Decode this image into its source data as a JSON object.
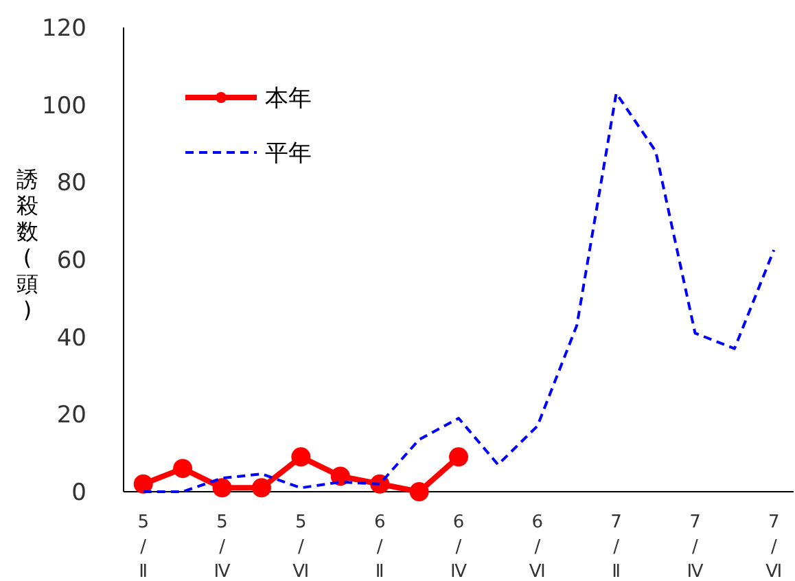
{
  "chart_data": {
    "type": "line",
    "ylabel": "誘殺数(頭)",
    "categories": [
      "5/Ⅱ",
      null,
      "5/Ⅳ",
      null,
      "5/Ⅵ",
      null,
      "6/Ⅱ",
      null,
      "6/Ⅳ",
      null,
      "6/Ⅵ",
      null,
      "7/Ⅱ",
      null,
      "7/Ⅳ",
      null,
      "7/Ⅵ"
    ],
    "series": [
      {
        "name": "本年",
        "color": "#ff0000",
        "marker": "circle",
        "line_style": "solid",
        "values": [
          2,
          6,
          1,
          1,
          9,
          4,
          2,
          0,
          9,
          null,
          null,
          null,
          null,
          null,
          null,
          null,
          null
        ]
      },
      {
        "name": "平年",
        "color": "#0000ff",
        "marker": "none",
        "line_style": "dashed",
        "values": [
          0,
          0,
          3.5,
          4.6,
          1,
          2.5,
          2,
          13.5,
          19,
          7,
          17,
          43,
          103,
          88,
          41,
          37,
          62.5
        ]
      }
    ],
    "ylim": [
      0,
      120
    ],
    "yticks": [
      0,
      20,
      40,
      60,
      80,
      100,
      120
    ],
    "legend": "top left",
    "grid": false
  }
}
